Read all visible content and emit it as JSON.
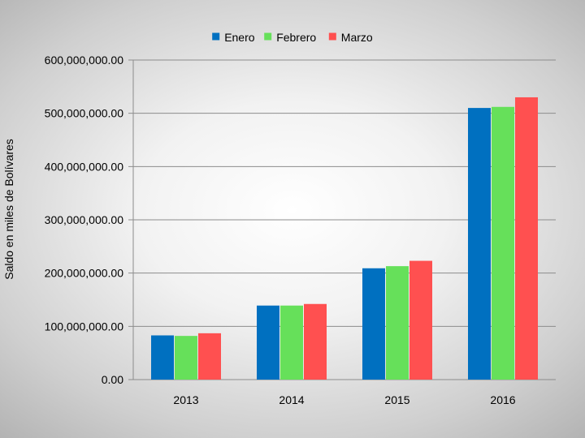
{
  "chart_data": {
    "type": "bar",
    "title": "",
    "xlabel": "",
    "ylabel": "Saldo en miles de Bolívares",
    "categories": [
      "2013",
      "2014",
      "2015",
      "2016"
    ],
    "series": [
      {
        "name": "Enero",
        "color": "#0070c0",
        "values": [
          83000000,
          139000000,
          209000000,
          510000000
        ]
      },
      {
        "name": "Febrero",
        "color": "#66e05a",
        "values": [
          82000000,
          139000000,
          213000000,
          512000000
        ]
      },
      {
        "name": "Marzo",
        "color": "#ff5050",
        "values": [
          87000000,
          142000000,
          223000000,
          530000000
        ]
      }
    ],
    "ylim": [
      0,
      600000000
    ],
    "yticks": [
      0,
      100000000,
      200000000,
      300000000,
      400000000,
      500000000,
      600000000
    ],
    "ytick_labels": [
      "0.00",
      "100,000,000.00",
      "200,000,000.00",
      "300,000,000.00",
      "400,000,000.00",
      "500,000,000.00",
      "600,000,000.00"
    ],
    "grid": true,
    "legend_position": "top-center"
  }
}
